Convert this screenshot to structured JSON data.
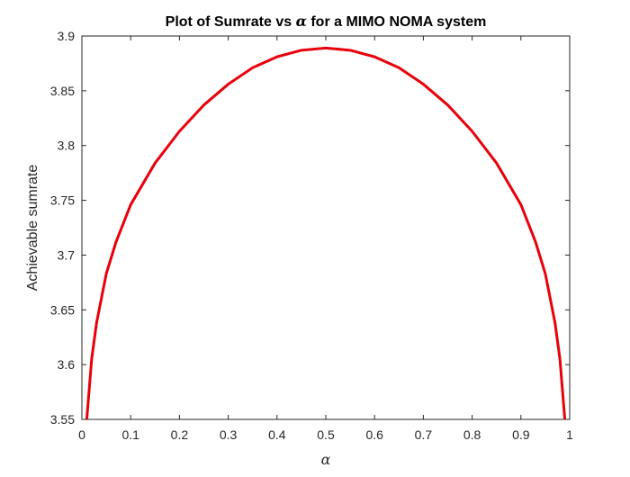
{
  "chart_data": {
    "type": "line",
    "title": {
      "prefix": "Plot of Sumrate vs ",
      "symbol": "α",
      "suffix": " for a MIMO NOMA system"
    },
    "xlabel": "α",
    "ylabel": "Achievable sumrate",
    "xlim": [
      0,
      1
    ],
    "ylim": [
      3.55,
      3.9
    ],
    "x_ticks": [
      {
        "value": 0,
        "label": "0"
      },
      {
        "value": 0.1,
        "label": "0.1"
      },
      {
        "value": 0.2,
        "label": "0.2"
      },
      {
        "value": 0.3,
        "label": "0.3"
      },
      {
        "value": 0.4,
        "label": "0.4"
      },
      {
        "value": 0.5,
        "label": "0.5"
      },
      {
        "value": 0.6,
        "label": "0.6"
      },
      {
        "value": 0.7,
        "label": "0.7"
      },
      {
        "value": 0.8,
        "label": "0.8"
      },
      {
        "value": 0.9,
        "label": "0.9"
      },
      {
        "value": 1,
        "label": "1"
      }
    ],
    "y_ticks": [
      {
        "value": 3.55,
        "label": "3.55"
      },
      {
        "value": 3.6,
        "label": "3.6"
      },
      {
        "value": 3.65,
        "label": "3.65"
      },
      {
        "value": 3.7,
        "label": "3.7"
      },
      {
        "value": 3.75,
        "label": "3.75"
      },
      {
        "value": 3.8,
        "label": "3.8"
      },
      {
        "value": 3.85,
        "label": "3.85"
      },
      {
        "value": 3.9,
        "label": "3.9"
      }
    ],
    "grid": false,
    "box": true,
    "series": [
      {
        "color": "#e8000b",
        "x": [
          0.01,
          0.02,
          0.03,
          0.05,
          0.07,
          0.1,
          0.15,
          0.2,
          0.25,
          0.3,
          0.35,
          0.4,
          0.45,
          0.5,
          0.55,
          0.6,
          0.65,
          0.7,
          0.75,
          0.8,
          0.85,
          0.9,
          0.93,
          0.95,
          0.97,
          0.98,
          0.99
        ],
        "y": [
          3.55,
          3.605,
          3.638,
          3.683,
          3.712,
          3.746,
          3.784,
          3.813,
          3.837,
          3.856,
          3.871,
          3.881,
          3.887,
          3.889,
          3.887,
          3.881,
          3.871,
          3.856,
          3.837,
          3.813,
          3.784,
          3.746,
          3.712,
          3.683,
          3.638,
          3.605,
          3.55
        ]
      }
    ]
  }
}
